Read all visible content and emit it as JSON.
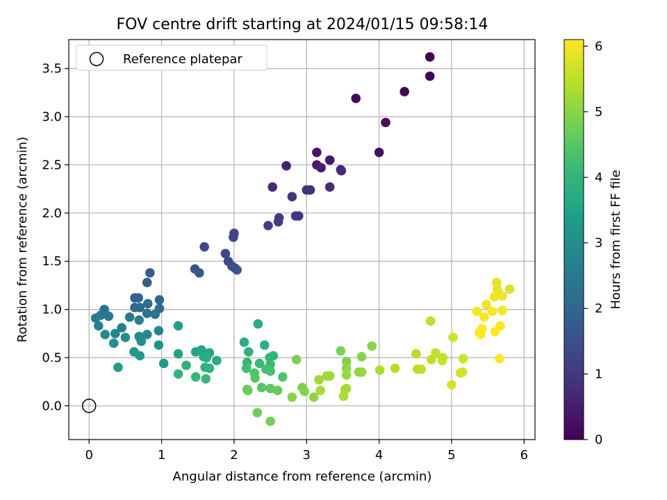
{
  "chart_data": {
    "type": "scatter",
    "title": "FOV centre drift starting at 2024/01/15 09:58:14",
    "xlabel": "Angular distance from reference (arcmin)",
    "ylabel": "Rotation from reference (arcmin)",
    "xlim": [
      -0.28,
      6.15
    ],
    "ylim": [
      -0.35,
      3.8
    ],
    "xticks": [
      0,
      1,
      2,
      3,
      4,
      5,
      6
    ],
    "xtick_labels": [
      "0",
      "1",
      "2",
      "3",
      "4",
      "5",
      "6"
    ],
    "yticks": [
      0.0,
      0.5,
      1.0,
      1.5,
      2.0,
      2.5,
      3.0,
      3.5
    ],
    "ytick_labels": [
      "0.0",
      "0.5",
      "1.0",
      "1.5",
      "2.0",
      "2.5",
      "3.0",
      "3.5"
    ],
    "grid": true,
    "legend": {
      "position": "top-left",
      "entries": [
        {
          "label": "Reference platepar",
          "marker": "open-circle"
        }
      ]
    },
    "reference_point": {
      "x": 0,
      "y": 0
    },
    "colorbar": {
      "label": "Hours from first FF file",
      "range": [
        0,
        6.1
      ],
      "ticks": [
        0,
        1,
        2,
        3,
        4,
        5,
        6
      ],
      "tick_labels": [
        "0",
        "1",
        "2",
        "3",
        "4",
        "5",
        "6"
      ],
      "colormap": "viridis",
      "colors": [
        "#440154",
        "#482878",
        "#3e4989",
        "#31688e",
        "#26828e",
        "#1f9e89",
        "#35b779",
        "#6ece58",
        "#b5de2b",
        "#fde725"
      ]
    },
    "points": [
      [
        4.7,
        3.62,
        0.0
      ],
      [
        4.7,
        3.42,
        0.05
      ],
      [
        4.35,
        3.26,
        0.1
      ],
      [
        3.68,
        3.19,
        0.15
      ],
      [
        4.09,
        2.94,
        0.2
      ],
      [
        4.0,
        2.63,
        0.25
      ],
      [
        3.14,
        2.63,
        0.35
      ],
      [
        3.32,
        2.55,
        0.4
      ],
      [
        3.14,
        2.5,
        0.45
      ],
      [
        3.2,
        2.47,
        0.5
      ],
      [
        2.72,
        2.49,
        0.55
      ],
      [
        3.47,
        2.45,
        0.6
      ],
      [
        3.48,
        2.44,
        0.65
      ],
      [
        2.53,
        2.27,
        0.7
      ],
      [
        3.32,
        2.27,
        0.75
      ],
      [
        3.0,
        2.24,
        0.8
      ],
      [
        3.05,
        2.24,
        0.85
      ],
      [
        2.8,
        2.17,
        0.9
      ],
      [
        2.85,
        1.97,
        0.95
      ],
      [
        2.89,
        1.97,
        1.0
      ],
      [
        2.62,
        1.95,
        1.05
      ],
      [
        2.61,
        1.91,
        1.1
      ],
      [
        2.47,
        1.87,
        1.15
      ],
      [
        2.0,
        1.79,
        1.2
      ],
      [
        1.99,
        1.75,
        1.25
      ],
      [
        1.59,
        1.65,
        1.3
      ],
      [
        1.88,
        1.58,
        1.35
      ],
      [
        1.92,
        1.5,
        1.4
      ],
      [
        1.97,
        1.45,
        1.45
      ],
      [
        2.01,
        1.43,
        1.5
      ],
      [
        2.04,
        1.41,
        1.55
      ],
      [
        1.46,
        1.42,
        1.6
      ],
      [
        1.52,
        1.38,
        1.65
      ],
      [
        0.84,
        1.38,
        1.8
      ],
      [
        0.8,
        1.28,
        1.85
      ],
      [
        0.63,
        1.12,
        1.9
      ],
      [
        0.68,
        1.12,
        1.95
      ],
      [
        0.97,
        1.1,
        2.0
      ],
      [
        0.63,
        1.02,
        2.05
      ],
      [
        0.7,
        1.02,
        2.1
      ],
      [
        0.97,
        1.01,
        2.15
      ],
      [
        0.81,
        1.06,
        2.2
      ],
      [
        0.21,
        1.0,
        2.25
      ],
      [
        0.8,
        0.96,
        2.3
      ],
      [
        0.91,
        0.95,
        2.35
      ],
      [
        0.16,
        0.94,
        2.4
      ],
      [
        0.27,
        0.93,
        2.45
      ],
      [
        0.56,
        0.92,
        2.5
      ],
      [
        0.09,
        0.91,
        2.55
      ],
      [
        0.69,
        0.89,
        2.6
      ],
      [
        0.13,
        0.83,
        2.65
      ],
      [
        0.45,
        0.81,
        2.7
      ],
      [
        0.96,
        0.78,
        2.75
      ],
      [
        0.36,
        0.75,
        2.8
      ],
      [
        0.8,
        0.74,
        2.85
      ],
      [
        0.22,
        0.74,
        2.9
      ],
      [
        0.69,
        0.72,
        2.95
      ],
      [
        0.5,
        0.71,
        3.0
      ],
      [
        0.72,
        0.67,
        3.05
      ],
      [
        0.34,
        0.65,
        3.1
      ],
      [
        0.96,
        0.63,
        3.15
      ],
      [
        0.62,
        0.56,
        3.25
      ],
      [
        0.7,
        0.52,
        3.3
      ],
      [
        1.03,
        0.44,
        3.35
      ],
      [
        0.4,
        0.4,
        3.4
      ],
      [
        1.23,
        0.83,
        3.45
      ],
      [
        1.23,
        0.54,
        3.5
      ],
      [
        1.47,
        0.56,
        3.55
      ],
      [
        1.55,
        0.58,
        3.6
      ],
      [
        1.66,
        0.55,
        3.65
      ],
      [
        1.58,
        0.51,
        3.7
      ],
      [
        1.76,
        0.47,
        3.75
      ],
      [
        1.62,
        0.5,
        3.8
      ],
      [
        1.34,
        0.42,
        3.85
      ],
      [
        1.6,
        0.4,
        3.9
      ],
      [
        1.66,
        0.39,
        3.95
      ],
      [
        1.23,
        0.33,
        4.0
      ],
      [
        1.47,
        0.3,
        4.05
      ],
      [
        1.61,
        0.28,
        4.1
      ],
      [
        2.33,
        0.85,
        3.75
      ],
      [
        2.14,
        0.66,
        3.8
      ],
      [
        2.42,
        0.63,
        3.85
      ],
      [
        2.2,
        0.56,
        3.9
      ],
      [
        2.54,
        0.52,
        3.95
      ],
      [
        2.49,
        0.5,
        4.0
      ],
      [
        2.18,
        0.45,
        4.05
      ],
      [
        2.35,
        0.44,
        4.1
      ],
      [
        2.5,
        0.43,
        4.15
      ],
      [
        2.17,
        0.39,
        4.2
      ],
      [
        2.44,
        0.38,
        4.25
      ],
      [
        2.5,
        0.36,
        4.3
      ],
      [
        2.28,
        0.34,
        4.35
      ],
      [
        2.67,
        0.3,
        4.4
      ],
      [
        2.29,
        0.29,
        4.45
      ],
      [
        2.38,
        0.19,
        4.5
      ],
      [
        2.5,
        0.18,
        4.55
      ],
      [
        2.18,
        0.17,
        4.6
      ],
      [
        2.6,
        0.16,
        4.65
      ],
      [
        2.19,
        0.16,
        4.7
      ],
      [
        2.32,
        -0.07,
        4.75
      ],
      [
        2.5,
        -0.16,
        4.8
      ],
      [
        2.86,
        0.48,
        4.85
      ],
      [
        2.94,
        0.19,
        4.9
      ],
      [
        2.97,
        0.15,
        4.95
      ],
      [
        2.8,
        0.09,
        5.0
      ],
      [
        3.1,
        0.09,
        5.05
      ],
      [
        3.47,
        0.57,
        4.85
      ],
      [
        3.55,
        0.46,
        4.9
      ],
      [
        3.76,
        0.51,
        4.95
      ],
      [
        3.9,
        0.62,
        5.0
      ],
      [
        3.55,
        0.39,
        5.05
      ],
      [
        3.72,
        0.35,
        5.1
      ],
      [
        3.76,
        0.35,
        5.12
      ],
      [
        3.55,
        0.32,
        5.15
      ],
      [
        3.28,
        0.31,
        5.18
      ],
      [
        3.32,
        0.31,
        5.2
      ],
      [
        3.17,
        0.27,
        5.22
      ],
      [
        3.55,
        0.18,
        5.25
      ],
      [
        3.53,
        0.17,
        5.28
      ],
      [
        3.19,
        0.16,
        5.3
      ],
      [
        3.51,
        0.1,
        5.32
      ],
      [
        4.01,
        0.37,
        5.35
      ],
      [
        4.22,
        0.39,
        5.4
      ],
      [
        4.51,
        0.54,
        5.42
      ],
      [
        4.53,
        0.38,
        5.45
      ],
      [
        4.58,
        0.38,
        5.48
      ],
      [
        4.71,
        0.88,
        5.5
      ],
      [
        4.72,
        0.48,
        5.52
      ],
      [
        4.78,
        0.55,
        5.55
      ],
      [
        4.88,
        0.5,
        5.58
      ],
      [
        4.87,
        0.47,
        5.6
      ],
      [
        5.02,
        0.71,
        5.62
      ],
      [
        5.16,
        0.49,
        5.65
      ],
      [
        5.15,
        0.35,
        5.68
      ],
      [
        5.12,
        0.34,
        5.7
      ],
      [
        5.0,
        0.22,
        5.72
      ],
      [
        5.8,
        1.21,
        5.8
      ],
      [
        5.62,
        1.28,
        5.85
      ],
      [
        5.63,
        1.21,
        5.88
      ],
      [
        5.65,
        1.16,
        5.9
      ],
      [
        5.7,
        1.14,
        5.92
      ],
      [
        5.59,
        1.13,
        5.95
      ],
      [
        5.48,
        1.05,
        5.98
      ],
      [
        5.56,
        0.98,
        6.0
      ],
      [
        5.7,
        0.99,
        6.02
      ],
      [
        5.35,
        0.98,
        6.04
      ],
      [
        5.45,
        0.92,
        6.05
      ],
      [
        5.67,
        0.83,
        6.06
      ],
      [
        5.42,
        0.8,
        6.07
      ],
      [
        5.38,
        0.76,
        6.08
      ],
      [
        5.4,
        0.74,
        6.09
      ],
      [
        5.6,
        0.77,
        6.09
      ],
      [
        5.66,
        0.49,
        6.1
      ]
    ]
  }
}
